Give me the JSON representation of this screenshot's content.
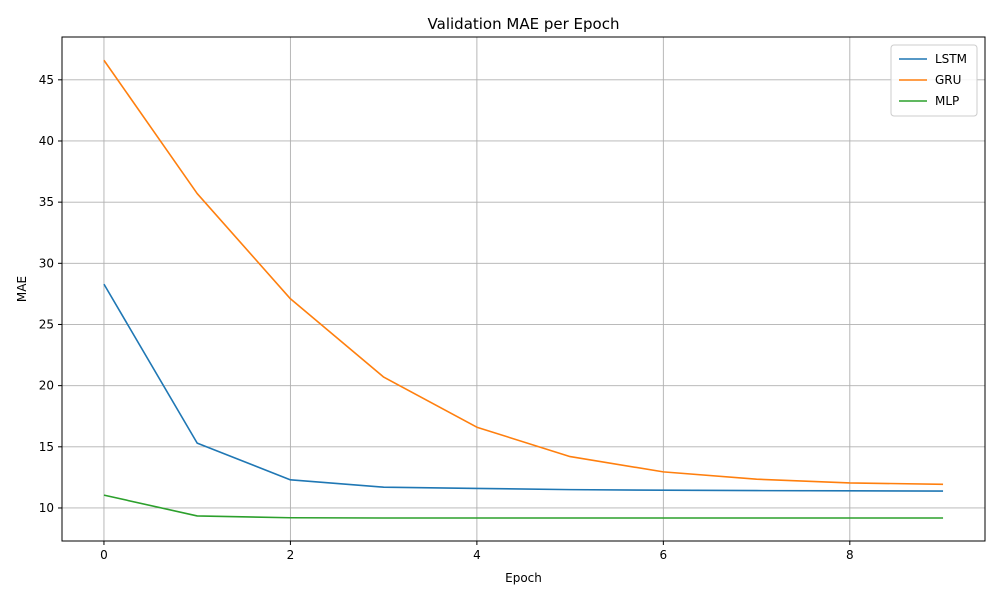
{
  "chart_data": {
    "type": "line",
    "title": "Validation MAE per Epoch",
    "xlabel": "Epoch",
    "ylabel": "MAE",
    "xlim": [
      -0.45,
      9.45
    ],
    "ylim": [
      7.3,
      48.5
    ],
    "xticks": [
      0,
      2,
      4,
      6,
      8
    ],
    "yticks": [
      10,
      15,
      20,
      25,
      30,
      35,
      40,
      45
    ],
    "grid": true,
    "legend_position": "top-right",
    "x": [
      0,
      1,
      2,
      3,
      4,
      5,
      6,
      7,
      8,
      9
    ],
    "series": [
      {
        "name": "LSTM",
        "color": "#1f77b4",
        "values": [
          28.3,
          15.3,
          12.3,
          11.7,
          11.6,
          11.5,
          11.45,
          11.42,
          11.4,
          11.38
        ]
      },
      {
        "name": "GRU",
        "color": "#ff7f0e",
        "values": [
          46.6,
          35.7,
          27.1,
          20.7,
          16.6,
          14.2,
          12.95,
          12.35,
          12.05,
          11.93
        ]
      },
      {
        "name": "MLP",
        "color": "#2ca02c",
        "values": [
          11.05,
          9.35,
          9.2,
          9.18,
          9.18,
          9.18,
          9.18,
          9.18,
          9.18,
          9.18
        ]
      }
    ]
  }
}
